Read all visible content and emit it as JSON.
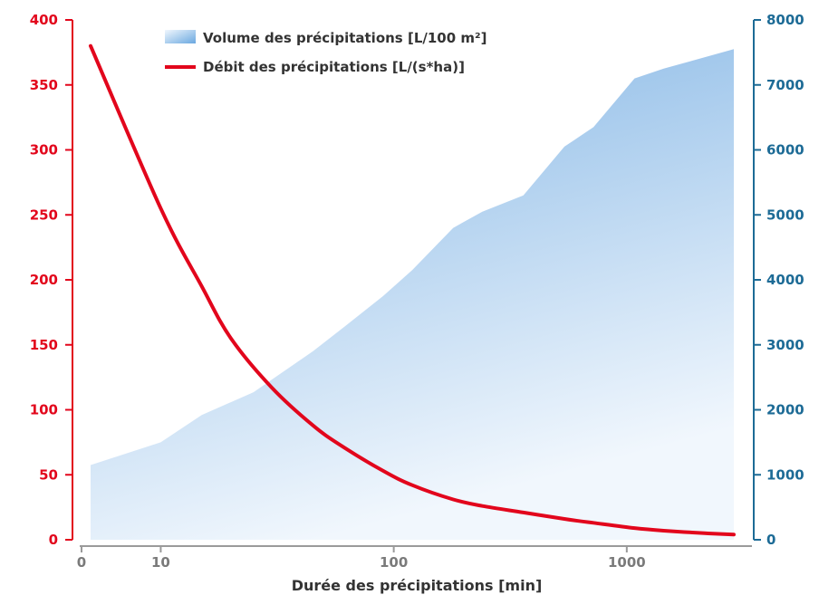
{
  "chart_data": {
    "type": "line",
    "title": "",
    "xlabel": "Durée des précipitations [min]",
    "x_scale": "log",
    "x_ticks": [
      "0",
      "10",
      "100",
      "1000"
    ],
    "x_range": [
      5,
      2880
    ],
    "left_axis": {
      "ticks": [
        "400",
        "350",
        "300",
        "250",
        "200",
        "150",
        "100",
        "50",
        "0"
      ],
      "ylim": [
        0,
        400
      ],
      "color": "#e2061c"
    },
    "right_axis": {
      "ticks": [
        "8000",
        "7000",
        "6000",
        "5000",
        "4000",
        "3000",
        "2000",
        "1000",
        "0"
      ],
      "ylim": [
        0,
        8000
      ],
      "color": "#1d6b96"
    },
    "series": [
      {
        "name": "Volume des précipitations [L/100 m²]",
        "type": "area",
        "axis": "right",
        "color": "#8ebde8",
        "points": [
          {
            "x": 5,
            "y": 1150
          },
          {
            "x": 10,
            "y": 1500
          },
          {
            "x": 15,
            "y": 1920
          },
          {
            "x": 25,
            "y": 2270
          },
          {
            "x": 45,
            "y": 2900
          },
          {
            "x": 60,
            "y": 3250
          },
          {
            "x": 90,
            "y": 3750
          },
          {
            "x": 120,
            "y": 4150
          },
          {
            "x": 180,
            "y": 4800
          },
          {
            "x": 240,
            "y": 5050
          },
          {
            "x": 360,
            "y": 5300
          },
          {
            "x": 540,
            "y": 6050
          },
          {
            "x": 720,
            "y": 6350
          },
          {
            "x": 1080,
            "y": 7100
          },
          {
            "x": 1440,
            "y": 7250
          },
          {
            "x": 2880,
            "y": 7550
          }
        ]
      },
      {
        "name": "Débit des précipitations [L/(s*ha)]",
        "type": "line",
        "axis": "left",
        "color": "#e2061c",
        "points": [
          {
            "x": 5,
            "y": 380
          },
          {
            "x": 10,
            "y": 255
          },
          {
            "x": 15,
            "y": 195
          },
          {
            "x": 20,
            "y": 155
          },
          {
            "x": 30,
            "y": 117
          },
          {
            "x": 45,
            "y": 88
          },
          {
            "x": 60,
            "y": 72
          },
          {
            "x": 90,
            "y": 53
          },
          {
            "x": 120,
            "y": 42
          },
          {
            "x": 180,
            "y": 31
          },
          {
            "x": 240,
            "y": 26
          },
          {
            "x": 360,
            "y": 21
          },
          {
            "x": 540,
            "y": 16
          },
          {
            "x": 720,
            "y": 13
          },
          {
            "x": 1080,
            "y": 9
          },
          {
            "x": 1440,
            "y": 7
          },
          {
            "x": 2160,
            "y": 5
          },
          {
            "x": 2880,
            "y": 4
          }
        ]
      }
    ],
    "legend": "top-left",
    "grid": false
  }
}
